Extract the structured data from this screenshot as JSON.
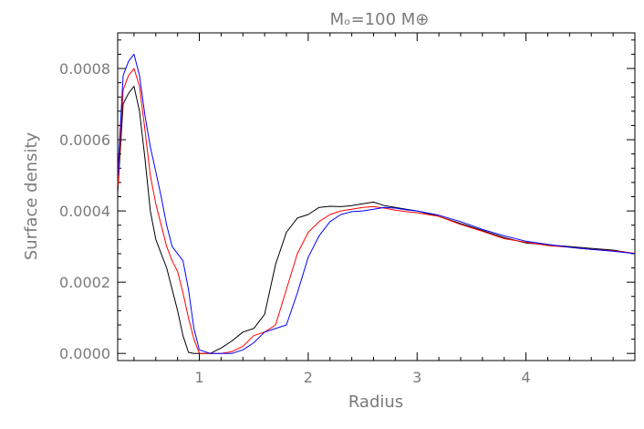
{
  "chart_data": {
    "type": "line",
    "title": "Mₒ=100  M⊕",
    "xlabel": "Radius",
    "ylabel": "Surface density",
    "xlim": [
      0.25,
      5.0
    ],
    "ylim": [
      -2e-05,
      0.0009
    ],
    "x_ticks": [
      1,
      2,
      3,
      4
    ],
    "x_tick_labels": [
      "1",
      "2",
      "3",
      "4"
    ],
    "y_ticks": [
      0.0,
      0.0002,
      0.0004,
      0.0006,
      0.0008
    ],
    "y_tick_labels": [
      "0.0000",
      "0.0002",
      "0.0004",
      "0.0006",
      "0.0008"
    ],
    "grid": false,
    "series": [
      {
        "color": "#000000",
        "points": [
          [
            0.25,
            0.00045
          ],
          [
            0.3,
            0.0007
          ],
          [
            0.35,
            0.00073
          ],
          [
            0.4,
            0.00075
          ],
          [
            0.45,
            0.00068
          ],
          [
            0.5,
            0.00055
          ],
          [
            0.55,
            0.0004
          ],
          [
            0.6,
            0.00032
          ],
          [
            0.65,
            0.00028
          ],
          [
            0.7,
            0.00024
          ],
          [
            0.75,
            0.00018
          ],
          [
            0.8,
            0.00012
          ],
          [
            0.85,
            5e-05
          ],
          [
            0.9,
            3e-06
          ],
          [
            0.95,
            0.0
          ],
          [
            1.0,
            0.0
          ],
          [
            1.1,
            0.0
          ],
          [
            1.2,
            1.5e-05
          ],
          [
            1.3,
            3.5e-05
          ],
          [
            1.4,
            6e-05
          ],
          [
            1.5,
            7e-05
          ],
          [
            1.6,
            0.00011
          ],
          [
            1.7,
            0.00025
          ],
          [
            1.8,
            0.00034
          ],
          [
            1.9,
            0.00038
          ],
          [
            2.0,
            0.00039
          ],
          [
            2.1,
            0.00041
          ],
          [
            2.2,
            0.000413
          ],
          [
            2.3,
            0.000412
          ],
          [
            2.4,
            0.000415
          ],
          [
            2.5,
            0.00042
          ],
          [
            2.6,
            0.000425
          ],
          [
            2.7,
            0.000415
          ],
          [
            2.8,
            0.00041
          ],
          [
            2.9,
            0.000405
          ],
          [
            3.0,
            0.0004
          ],
          [
            3.2,
            0.000385
          ],
          [
            3.4,
            0.000365
          ],
          [
            3.6,
            0.000345
          ],
          [
            3.8,
            0.000325
          ],
          [
            4.0,
            0.00031
          ],
          [
            4.2,
            0.000305
          ],
          [
            4.4,
            0.0003
          ],
          [
            4.6,
            0.000295
          ],
          [
            4.8,
            0.00029
          ],
          [
            5.0,
            0.00028
          ]
        ]
      },
      {
        "color": "#ff0000",
        "points": [
          [
            0.25,
            0.00047
          ],
          [
            0.3,
            0.00074
          ],
          [
            0.35,
            0.00078
          ],
          [
            0.4,
            0.0008
          ],
          [
            0.45,
            0.00075
          ],
          [
            0.5,
            0.00063
          ],
          [
            0.55,
            0.0005
          ],
          [
            0.6,
            0.00042
          ],
          [
            0.65,
            0.00036
          ],
          [
            0.7,
            0.0003
          ],
          [
            0.75,
            0.00026
          ],
          [
            0.8,
            0.00023
          ],
          [
            0.85,
            0.00017
          ],
          [
            0.9,
            0.0001
          ],
          [
            0.95,
            4e-05
          ],
          [
            1.0,
            0.0
          ],
          [
            1.1,
            0.0
          ],
          [
            1.2,
            0.0
          ],
          [
            1.3,
            5e-06
          ],
          [
            1.4,
            2e-05
          ],
          [
            1.5,
            5e-05
          ],
          [
            1.6,
            6e-05
          ],
          [
            1.7,
            8e-05
          ],
          [
            1.8,
            0.00018
          ],
          [
            1.9,
            0.00028
          ],
          [
            2.0,
            0.00034
          ],
          [
            2.1,
            0.00037
          ],
          [
            2.2,
            0.00039
          ],
          [
            2.3,
            0.0004
          ],
          [
            2.4,
            0.000405
          ],
          [
            2.5,
            0.00041
          ],
          [
            2.6,
            0.000412
          ],
          [
            2.7,
            0.000408
          ],
          [
            2.8,
            0.000402
          ],
          [
            2.9,
            0.000398
          ],
          [
            3.0,
            0.000395
          ],
          [
            3.2,
            0.000385
          ],
          [
            3.4,
            0.000362
          ],
          [
            3.6,
            0.000343
          ],
          [
            3.8,
            0.000322
          ],
          [
            4.0,
            0.000312
          ],
          [
            4.2,
            0.000303
          ],
          [
            4.4,
            0.000298
          ],
          [
            4.6,
            0.000292
          ],
          [
            4.8,
            0.000288
          ],
          [
            5.0,
            0.000281
          ]
        ]
      },
      {
        "color": "#0000ff",
        "points": [
          [
            0.25,
            0.0005
          ],
          [
            0.3,
            0.00078
          ],
          [
            0.35,
            0.00082
          ],
          [
            0.4,
            0.00084
          ],
          [
            0.45,
            0.00078
          ],
          [
            0.5,
            0.00067
          ],
          [
            0.55,
            0.00058
          ],
          [
            0.6,
            0.00051
          ],
          [
            0.65,
            0.00044
          ],
          [
            0.7,
            0.00036
          ],
          [
            0.75,
            0.0003
          ],
          [
            0.8,
            0.00028
          ],
          [
            0.85,
            0.00026
          ],
          [
            0.9,
            0.00018
          ],
          [
            0.95,
            7e-05
          ],
          [
            1.0,
            1e-05
          ],
          [
            1.1,
            0.0
          ],
          [
            1.2,
            0.0
          ],
          [
            1.3,
            0.0
          ],
          [
            1.4,
            1e-05
          ],
          [
            1.5,
            3e-05
          ],
          [
            1.6,
            6e-05
          ],
          [
            1.7,
            7e-05
          ],
          [
            1.8,
            8e-05
          ],
          [
            1.9,
            0.00017
          ],
          [
            2.0,
            0.00027
          ],
          [
            2.1,
            0.00033
          ],
          [
            2.2,
            0.00037
          ],
          [
            2.3,
            0.00039
          ],
          [
            2.4,
            0.000398
          ],
          [
            2.5,
            0.0004
          ],
          [
            2.6,
            0.000405
          ],
          [
            2.7,
            0.00041
          ],
          [
            2.8,
            0.000408
          ],
          [
            2.9,
            0.000403
          ],
          [
            3.0,
            0.0004
          ],
          [
            3.2,
            0.000388
          ],
          [
            3.4,
            0.00037
          ],
          [
            3.6,
            0.000348
          ],
          [
            3.8,
            0.00033
          ],
          [
            4.0,
            0.000315
          ],
          [
            4.2,
            0.000306
          ],
          [
            4.4,
            0.000298
          ],
          [
            4.6,
            0.000292
          ],
          [
            4.8,
            0.000287
          ],
          [
            5.0,
            0.00028
          ]
        ]
      }
    ]
  }
}
